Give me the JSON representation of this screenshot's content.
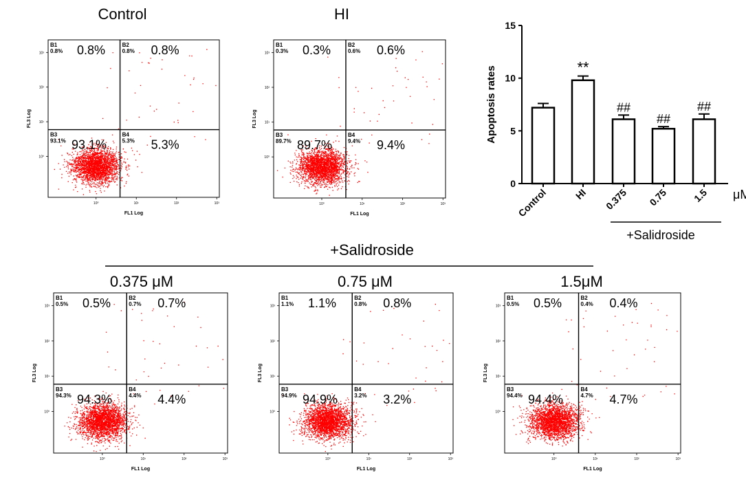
{
  "top_group_label": "+Salidroside",
  "units_label": "μM",
  "chart_data": [
    {
      "type": "bar",
      "ylabel": "Apoptosis rates",
      "ylim": [
        0,
        15
      ],
      "yticks": [
        "0",
        "5",
        "10",
        "15"
      ],
      "categories": [
        "Control",
        "HI",
        "0.375",
        "0.75",
        "1.5"
      ],
      "values": [
        7.2,
        9.8,
        6.1,
        5.2,
        6.1
      ],
      "errors": [
        0.4,
        0.4,
        0.4,
        0.2,
        0.5
      ],
      "annotations": [
        "",
        "**",
        "##",
        "##",
        "##"
      ],
      "group_label": "+Salidroside",
      "units": "μM"
    },
    {
      "type": "scatter",
      "title": "Control",
      "xlabel": "FL1 Log",
      "ylabel": "FL3 Log",
      "quadrants": {
        "B1": "0.8%",
        "B2": "0.8%",
        "B3": "93.1%",
        "B4": "5.3%"
      },
      "large_labels": [
        "0.8%",
        "0.8%",
        "93.1%",
        "5.3%"
      ],
      "x_ticks": [
        "10⁰",
        "10¹",
        "10²",
        "10³"
      ],
      "y_ticks": [
        "10⁰",
        "10¹",
        "10²",
        "10³"
      ],
      "event_color": "#ff0000"
    },
    {
      "type": "scatter",
      "title": "HI",
      "xlabel": "FL1 Log",
      "ylabel": "FL3 Log",
      "quadrants": {
        "B1": "0.3%",
        "B2": "0.6%",
        "B3": "89.7%",
        "B4": "9.4%"
      },
      "large_labels": [
        "0.3%",
        "0.6%",
        "89.7%",
        "9.4%"
      ],
      "x_ticks": [
        "10⁰",
        "10¹",
        "10²",
        "10³"
      ],
      "y_ticks": [
        "10⁰",
        "10¹",
        "10²",
        "10³"
      ],
      "event_color": "#ff0000"
    },
    {
      "type": "scatter",
      "title": "0.375 μM",
      "xlabel": "FL1 Log",
      "ylabel": "FL3 Log",
      "quadrants": {
        "B1": "0.5%",
        "B2": "0.7%",
        "B3": "94.3%",
        "B4": "4.4%"
      },
      "large_labels": [
        "0.5%",
        "0.7%",
        "94.3%",
        "4.4%"
      ],
      "x_ticks": [
        "10⁰",
        "10¹",
        "10²",
        "10³"
      ],
      "y_ticks": [
        "10⁰",
        "10¹",
        "10²",
        "10³"
      ],
      "event_color": "#ff0000"
    },
    {
      "type": "scatter",
      "title": "0.75 μM",
      "xlabel": "FL1 Log",
      "ylabel": "FL3 Log",
      "quadrants": {
        "B1": "1.1%",
        "B2": "0.8%",
        "B3": "94.9%",
        "B4": "3.2%"
      },
      "large_labels": [
        "1.1%",
        "0.8%",
        "94.9%",
        "3.2%"
      ],
      "x_ticks": [
        "10⁰",
        "10¹",
        "10²",
        "10³"
      ],
      "y_ticks": [
        "10⁰",
        "10¹",
        "10²",
        "10³"
      ],
      "event_color": "#ff0000"
    },
    {
      "type": "scatter",
      "title": "1.5μM",
      "xlabel": "FL1 Log",
      "ylabel": "FL3 Log",
      "quadrants": {
        "B1": "0.5%",
        "B2": "0.4%",
        "B3": "94.4%",
        "B4": "4.7%"
      },
      "large_labels": [
        "0.5%",
        "0.4%",
        "94.4%",
        "4.7%"
      ],
      "x_ticks": [
        "10⁰",
        "10¹",
        "10²",
        "10³"
      ],
      "y_ticks": [
        "10⁰",
        "10¹",
        "10²",
        "10³"
      ],
      "event_color": "#ff0000"
    }
  ]
}
